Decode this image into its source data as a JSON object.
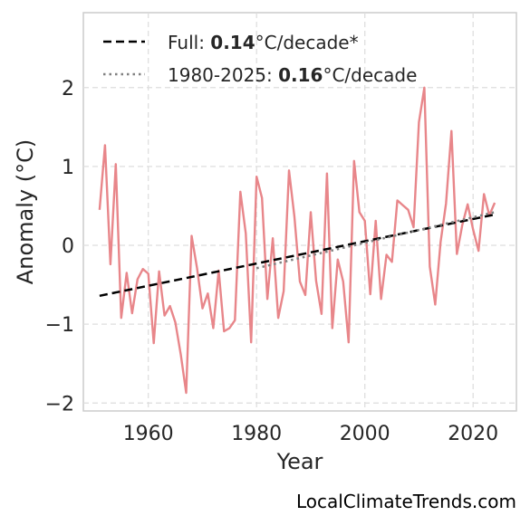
{
  "chart_data": {
    "type": "line",
    "xlabel": "Year",
    "ylabel": "Anomaly (°C)",
    "xlim": [
      1948,
      2028
    ],
    "ylim": [
      -2.1,
      2.95
    ],
    "xticks": [
      1960,
      1980,
      2000,
      2020
    ],
    "yticks": [
      -2,
      -1,
      0,
      1,
      2
    ],
    "xtick_labels": [
      "1960",
      "1980",
      "2000",
      "2020"
    ],
    "ytick_labels": [
      "−2",
      "−1",
      "0",
      "1",
      "2"
    ],
    "grid": true,
    "legend_placement": "top-left",
    "legend": [
      {
        "prefix": "Full: ",
        "value": "0.14",
        "suffix": "°C/decade*",
        "style": "dashed",
        "color": "#000000"
      },
      {
        "prefix": "1980-2025: ",
        "value": "0.16",
        "suffix": "°C/decade",
        "style": "dotted",
        "color": "#808080"
      }
    ],
    "series": [
      {
        "color": "#e8868a",
        "x": [
          1951,
          1952,
          1953,
          1954,
          1955,
          1956,
          1957,
          1958,
          1959,
          1960,
          1961,
          1962,
          1963,
          1964,
          1965,
          1966,
          1967,
          1968,
          1969,
          1970,
          1971,
          1972,
          1973,
          1974,
          1975,
          1976,
          1977,
          1978,
          1979,
          1980,
          1981,
          1982,
          1983,
          1984,
          1985,
          1986,
          1987,
          1988,
          1989,
          1990,
          1991,
          1992,
          1993,
          1994,
          1995,
          1996,
          1997,
          1998,
          1999,
          2000,
          2001,
          2002,
          2003,
          2004,
          2005,
          2006,
          2007,
          2008,
          2009,
          2010,
          2011,
          2012,
          2013,
          2014,
          2015,
          2016,
          2017,
          2018,
          2019,
          2020,
          2021,
          2022,
          2023,
          2024
        ],
        "values": [
          0.45,
          1.27,
          -0.24,
          1.03,
          -0.92,
          -0.35,
          -0.86,
          -0.43,
          -0.3,
          -0.36,
          -1.24,
          -0.33,
          -0.89,
          -0.77,
          -0.98,
          -1.39,
          -1.87,
          0.12,
          -0.29,
          -0.8,
          -0.61,
          -1.05,
          -0.32,
          -1.09,
          -1.05,
          -0.95,
          0.68,
          0.15,
          -1.23,
          0.87,
          0.6,
          -0.68,
          0.09,
          -0.92,
          -0.58,
          0.95,
          0.36,
          -0.46,
          -0.63,
          0.42,
          -0.45,
          -0.87,
          0.91,
          -1.05,
          -0.18,
          -0.46,
          -1.23,
          1.07,
          0.42,
          0.31,
          -0.62,
          0.31,
          -0.68,
          -0.12,
          -0.21,
          0.57,
          0.51,
          0.45,
          0.23,
          1.56,
          2.0,
          -0.27,
          -0.75,
          0.04,
          0.53,
          1.45,
          -0.11,
          0.26,
          0.52,
          0.2,
          -0.07,
          0.65,
          0.38,
          0.54
        ]
      },
      {
        "name": "Full",
        "style": "dashed",
        "color": "#000000",
        "x": [
          1951,
          2024
        ],
        "values": [
          -0.64,
          0.39
        ]
      },
      {
        "name": "1980-2025",
        "style": "dotted",
        "color": "#808080",
        "x": [
          1980,
          2024
        ],
        "values": [
          -0.29,
          0.42
        ]
      }
    ]
  },
  "watermark": "LocalClimateTrends.com"
}
